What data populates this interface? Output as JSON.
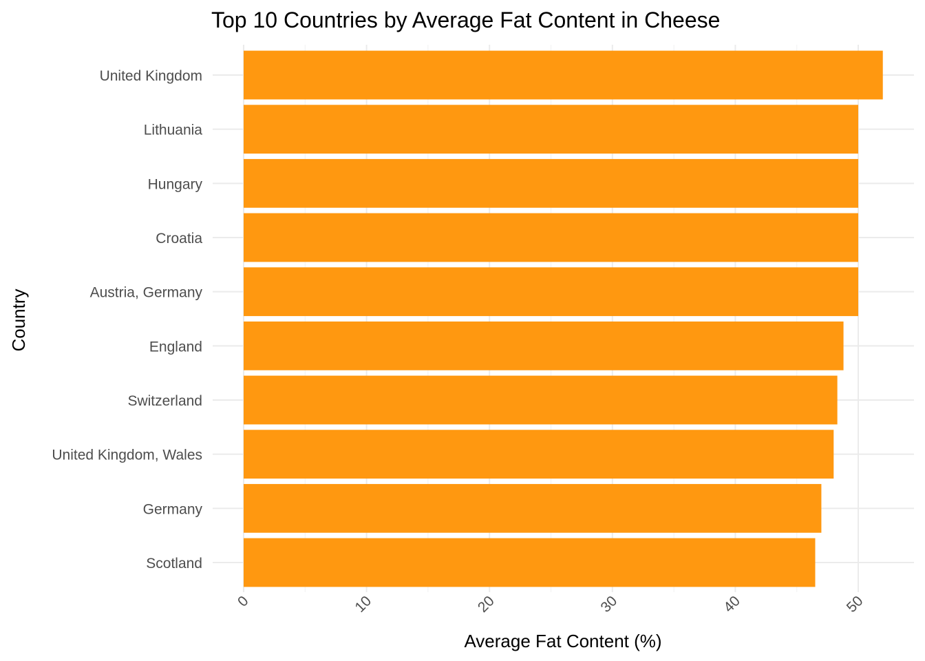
{
  "chart_data": {
    "type": "bar",
    "orientation": "horizontal",
    "title": "Top 10 Countries by Average Fat Content in Cheese",
    "xlabel": "Average Fat Content (%)",
    "ylabel": "Country",
    "categories": [
      "United Kingdom",
      "Lithuania",
      "Hungary",
      "Croatia",
      "Austria, Germany",
      "England",
      "Switzerland",
      "United Kingdom, Wales",
      "Germany",
      "Scotland"
    ],
    "values": [
      52,
      50,
      50,
      50,
      50,
      48.8,
      48.3,
      48,
      47,
      46.5
    ],
    "xlim": [
      0,
      54.6
    ],
    "x_ticks": [
      "0",
      "10",
      "20",
      "30",
      "40",
      "50"
    ],
    "x_tick_values": [
      0,
      10,
      20,
      30,
      40,
      50
    ],
    "bar_color": "#FF9810",
    "grid": true,
    "legend": "none"
  }
}
